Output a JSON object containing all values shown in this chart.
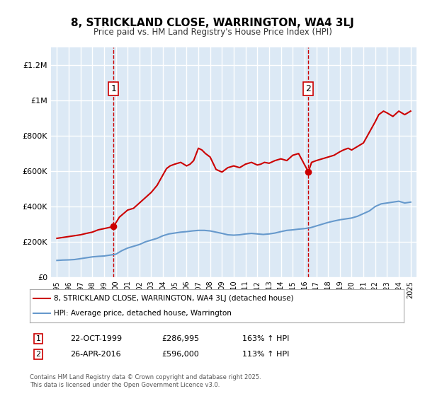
{
  "title": "8, STRICKLAND CLOSE, WARRINGTON, WA4 3LJ",
  "subtitle": "Price paid vs. HM Land Registry's House Price Index (HPI)",
  "bg_color": "#dce9f5",
  "plot_bg_color": "#dce9f5",
  "red_color": "#cc0000",
  "blue_color": "#6699cc",
  "grid_color": "#ffffff",
  "sale1_x": 1999.81,
  "sale1_y": 286995,
  "sale1_label": "1",
  "sale1_date": "22-OCT-1999",
  "sale1_price": "£286,995",
  "sale1_hpi": "163% ↑ HPI",
  "sale2_x": 2016.33,
  "sale2_y": 596000,
  "sale2_label": "2",
  "sale2_date": "26-APR-2016",
  "sale2_price": "£596,000",
  "sale2_hpi": "113% ↑ HPI",
  "legend_label_red": "8, STRICKLAND CLOSE, WARRINGTON, WA4 3LJ (detached house)",
  "legend_label_blue": "HPI: Average price, detached house, Warrington",
  "footer": "Contains HM Land Registry data © Crown copyright and database right 2025.\nThis data is licensed under the Open Government Licence v3.0.",
  "ylim": [
    0,
    1300000
  ],
  "xlim_start": 1994.5,
  "xlim_end": 2025.5,
  "yticks": [
    0,
    200000,
    400000,
    600000,
    800000,
    1000000,
    1200000
  ],
  "ytick_labels": [
    "£0",
    "£200K",
    "£400K",
    "£600K",
    "£800K",
    "£1M",
    "£1.2M"
  ],
  "xticks": [
    1995,
    1996,
    1997,
    1998,
    1999,
    2000,
    2001,
    2002,
    2003,
    2004,
    2005,
    2006,
    2007,
    2008,
    2009,
    2010,
    2011,
    2012,
    2013,
    2014,
    2015,
    2016,
    2017,
    2018,
    2019,
    2020,
    2021,
    2022,
    2023,
    2024,
    2025
  ],
  "red_x": [
    1995.0,
    1995.5,
    1996.0,
    1996.5,
    1997.0,
    1997.5,
    1998.0,
    1998.5,
    1999.0,
    1999.81,
    2000.3,
    2001.0,
    2001.5,
    2002.0,
    2002.5,
    2003.0,
    2003.5,
    2004.0,
    2004.3,
    2004.6,
    2005.0,
    2005.5,
    2006.0,
    2006.3,
    2006.6,
    2007.0,
    2007.3,
    2007.6,
    2008.0,
    2008.5,
    2009.0,
    2009.5,
    2010.0,
    2010.5,
    2011.0,
    2011.5,
    2012.0,
    2012.3,
    2012.6,
    2013.0,
    2013.5,
    2014.0,
    2014.5,
    2015.0,
    2015.5,
    2016.33,
    2016.6,
    2017.0,
    2017.5,
    2018.0,
    2018.5,
    2019.0,
    2019.3,
    2019.7,
    2020.0,
    2020.5,
    2021.0,
    2021.5,
    2022.0,
    2022.3,
    2022.7,
    2023.0,
    2023.5,
    2024.0,
    2024.5,
    2025.0
  ],
  "red_y": [
    220000,
    225000,
    230000,
    235000,
    240000,
    248000,
    255000,
    268000,
    275000,
    286995,
    340000,
    380000,
    390000,
    420000,
    450000,
    480000,
    520000,
    580000,
    615000,
    630000,
    640000,
    650000,
    630000,
    640000,
    660000,
    730000,
    720000,
    700000,
    680000,
    610000,
    595000,
    620000,
    630000,
    620000,
    640000,
    650000,
    635000,
    640000,
    650000,
    645000,
    660000,
    670000,
    660000,
    690000,
    700000,
    596000,
    650000,
    660000,
    670000,
    680000,
    690000,
    710000,
    720000,
    730000,
    720000,
    740000,
    760000,
    820000,
    880000,
    920000,
    940000,
    930000,
    910000,
    940000,
    920000,
    940000
  ],
  "blue_x": [
    1995.0,
    1995.5,
    1996.0,
    1996.5,
    1997.0,
    1997.5,
    1998.0,
    1998.5,
    1999.0,
    1999.5,
    2000.0,
    2000.5,
    2001.0,
    2001.5,
    2002.0,
    2002.5,
    2003.0,
    2003.5,
    2004.0,
    2004.5,
    2005.0,
    2005.5,
    2006.0,
    2006.5,
    2007.0,
    2007.5,
    2008.0,
    2008.5,
    2009.0,
    2009.5,
    2010.0,
    2010.5,
    2011.0,
    2011.5,
    2012.0,
    2012.5,
    2013.0,
    2013.5,
    2014.0,
    2014.5,
    2015.0,
    2015.5,
    2016.0,
    2016.5,
    2017.0,
    2017.5,
    2018.0,
    2018.5,
    2019.0,
    2019.5,
    2020.0,
    2020.5,
    2021.0,
    2021.5,
    2022.0,
    2022.5,
    2023.0,
    2023.5,
    2024.0,
    2024.5,
    2025.0
  ],
  "blue_y": [
    95000,
    97000,
    98000,
    100000,
    105000,
    110000,
    115000,
    118000,
    120000,
    125000,
    130000,
    150000,
    165000,
    175000,
    185000,
    200000,
    210000,
    220000,
    235000,
    245000,
    250000,
    255000,
    258000,
    262000,
    265000,
    265000,
    262000,
    255000,
    248000,
    240000,
    238000,
    240000,
    245000,
    248000,
    245000,
    242000,
    245000,
    250000,
    258000,
    265000,
    268000,
    272000,
    275000,
    280000,
    290000,
    300000,
    310000,
    318000,
    325000,
    330000,
    335000,
    345000,
    360000,
    375000,
    400000,
    415000,
    420000,
    425000,
    430000,
    420000,
    425000
  ]
}
